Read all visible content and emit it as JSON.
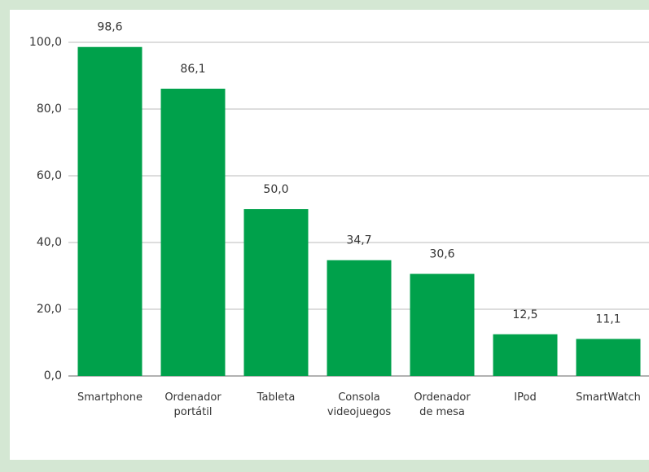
{
  "chart_data": {
    "type": "bar",
    "categories": [
      "Smartphone",
      "Ordenador portátil",
      "Tableta",
      "Consola videojuegos",
      "Ordenador de mesa",
      "IPod",
      "SmartWatch"
    ],
    "values": [
      98.6,
      86.1,
      50.0,
      34.7,
      30.6,
      12.5,
      11.1
    ],
    "value_labels": [
      "98,6",
      "86,1",
      "50,0",
      "34,7",
      "30,6",
      "12,5",
      "11,1"
    ],
    "color": "#00a14b",
    "ylim": [
      0,
      100
    ],
    "yticks": [
      {
        "value": 0,
        "label": "0,0"
      },
      {
        "value": 20,
        "label": "20,0"
      },
      {
        "value": 40,
        "label": "40,0"
      },
      {
        "value": 60,
        "label": "60,0"
      },
      {
        "value": 80,
        "label": "80,0"
      },
      {
        "value": 100,
        "label": "100,0"
      }
    ],
    "grid": true
  }
}
